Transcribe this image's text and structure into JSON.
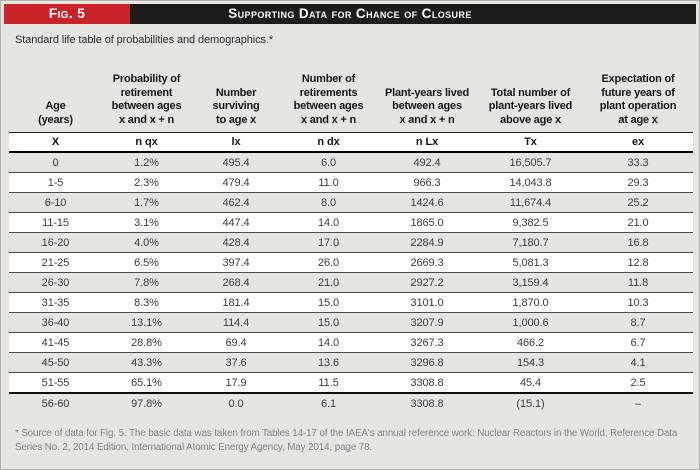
{
  "figure": {
    "label": "Fig. 5",
    "title": "Supporting Data for Chance of Closure",
    "subtitle": "Standard life table of probabilities and demographics.*",
    "footnote": "* Source of data for Fig. 5. The basic data was taken from Tables 14-17 of the IAEA's annual reference work: Nuclear Reactors in the World, Reference Data Series No. 2, 2014 Edition, International Atomic Energy Agency, May 2014, page 78."
  },
  "colors": {
    "accent_red": "#c9232a",
    "bar_black": "#1d1c1a",
    "page_background": "#e7e5e2",
    "row_white": "#fefefe",
    "rule_gray": "#4c4c4c"
  },
  "table": {
    "headers": [
      [
        "Age",
        "(years)"
      ],
      [
        "Probability of",
        "retirement",
        "between ages",
        "x and x + n"
      ],
      [
        "Number",
        "surviving",
        "to age x"
      ],
      [
        "Number of",
        "retirements",
        "between ages",
        "x and x + n"
      ],
      [
        "Plant-years lived",
        "between ages",
        "x and x + n"
      ],
      [
        "Total number of",
        "plant-years lived",
        "above age x"
      ],
      [
        "Expectation of",
        "future years of",
        "plant operation",
        "at age x"
      ]
    ],
    "symbols": [
      "X",
      "n qx",
      "lx",
      "n dx",
      "n Lx",
      "Tx",
      "ex"
    ],
    "rows": [
      [
        "0",
        "1.2%",
        "495.4",
        "6.0",
        "492.4",
        "16,505.7",
        "33.3"
      ],
      [
        "1-5",
        "2.3%",
        "479.4",
        "11.0",
        "966.3",
        "14,043.8",
        "29.3"
      ],
      [
        "6-10",
        "1.7%",
        "462.4",
        "8.0",
        "1424.6",
        "11,674.4",
        "25.2"
      ],
      [
        "11-15",
        "3.1%",
        "447.4",
        "14.0",
        "1865.0",
        "9,382.5",
        "21.0"
      ],
      [
        "16-20",
        "4.0%",
        "428.4",
        "17.0",
        "2284.9",
        "7,180.7",
        "16.8"
      ],
      [
        "21-25",
        "6.5%",
        "397.4",
        "26.0",
        "2669.3",
        "5,081.3",
        "12.8"
      ],
      [
        "26-30",
        "7.8%",
        "268.4",
        "21.0",
        "2927.2",
        "3,159.4",
        "11.8"
      ],
      [
        "31-35",
        "8.3%",
        "181.4",
        "15.0",
        "3101.0",
        "1,870.0",
        "10.3"
      ],
      [
        "36-40",
        "13.1%",
        "114.4",
        "15.0",
        "3207.9",
        "1,000.6",
        "8.7"
      ],
      [
        "41-45",
        "28.8%",
        "69.4",
        "14.0",
        "3267.3",
        "466.2",
        "6.7"
      ],
      [
        "45-50",
        "43.3%",
        "37.6",
        "13.6",
        "3296.8",
        "154.3",
        "4.1"
      ],
      [
        "51-55",
        "65.1%",
        "17.9",
        "11.5",
        "3308.8",
        "45.4",
        "2.5"
      ],
      [
        "56-60",
        "97.8%",
        "0.0",
        "6.1",
        "3308.8",
        "(15.1)",
        "–"
      ]
    ]
  }
}
